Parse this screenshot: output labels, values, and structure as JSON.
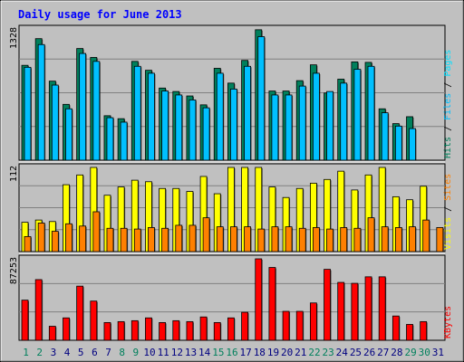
{
  "chart_data": {
    "type": "bar",
    "title": "Daily usage for June 2013",
    "categories": [
      "1",
      "2",
      "3",
      "4",
      "5",
      "6",
      "7",
      "8",
      "9",
      "10",
      "11",
      "12",
      "13",
      "14",
      "15",
      "16",
      "17",
      "18",
      "19",
      "20",
      "21",
      "22",
      "23",
      "24",
      "25",
      "26",
      "27",
      "28",
      "29",
      "30",
      "31"
    ],
    "weekend_days": [
      1,
      2,
      8,
      9,
      15,
      16,
      22,
      23,
      29,
      30
    ],
    "panels": [
      {
        "id": "hits_files_pages",
        "max_label": "1328",
        "ymax": 1328,
        "legend": [
          "Pages",
          "Files",
          "Hits"
        ],
        "series": [
          {
            "name": "Hits",
            "color": "#00805c",
            "values": [
              960,
              1230,
              800,
              565,
              1130,
              1040,
              450,
              420,
              1000,
              910,
              730,
              695,
              650,
              560,
              930,
              780,
              1010,
              1320,
              700,
              700,
              805,
              965,
              680,
              820,
              995,
              990,
              520,
              370,
              440,
              null,
              null
            ]
          },
          {
            "name": "Files",
            "color": "#00c0ff",
            "values": [
              940,
              1170,
              760,
              520,
              1080,
              1000,
              430,
              385,
              950,
              880,
              700,
              660,
              610,
              530,
              880,
              720,
              950,
              1250,
              660,
              660,
              750,
              880,
              695,
              780,
              920,
              950,
              480,
              345,
              320,
              null,
              null
            ]
          },
          {
            "name": "Pages",
            "color": "#00e0ff",
            "values": [
              null,
              null,
              null,
              null,
              null,
              null,
              null,
              null,
              null,
              null,
              null,
              null,
              null,
              null,
              null,
              null,
              null,
              null,
              null,
              null,
              null,
              null,
              null,
              null,
              null,
              null,
              null,
              null,
              null,
              null,
              null
            ]
          }
        ]
      },
      {
        "id": "visits_sites",
        "max_label": "112",
        "ymax": 112,
        "legend": [
          "Sites",
          "Visits"
        ],
        "series": [
          {
            "name": "Visits",
            "color": "#ffff00",
            "values": [
              39,
              42,
              40,
              89,
              102,
              112,
              75,
              86,
              95,
              93,
              84,
              84,
              80,
              100,
              77,
              112,
              112,
              112,
              86,
              72,
              84,
              91,
              96,
              107,
              82,
              102,
              112,
              73,
              69,
              87,
              null
            ]
          },
          {
            "name": "Sites",
            "color": "#ff8000",
            "values": [
              20,
              38,
              27,
              37,
              34,
              53,
              31,
              31,
              30,
              32,
              31,
              35,
              35,
              45,
              33,
              33,
              33,
              30,
              33,
              33,
              31,
              32,
              30,
              32,
              31,
              45,
              33,
              32,
              33,
              42,
              32
            ]
          }
        ]
      },
      {
        "id": "kbytes",
        "max_label": "87253",
        "ymax": 87253,
        "legend": [
          "KBytes"
        ],
        "series": [
          {
            "name": "KBytes",
            "color": "#ff0000",
            "values": [
              43000,
              65000,
              15000,
              24000,
              58000,
              42000,
              19000,
              20000,
              21000,
              24000,
              19000,
              21000,
              20000,
              25000,
              19000,
              24000,
              30000,
              87253,
              78000,
              31000,
              31000,
              40000,
              76000,
              62000,
              61000,
              68000,
              68000,
              26000,
              17000,
              20000,
              null
            ]
          }
        ]
      }
    ]
  },
  "colors": {
    "background": "#c0c0c0",
    "frame": "#000000",
    "title": "#0000ff",
    "weekday_label": "#000080",
    "weekend_label": "#00805c",
    "grid": "#808080",
    "separator": "#ffffff"
  }
}
